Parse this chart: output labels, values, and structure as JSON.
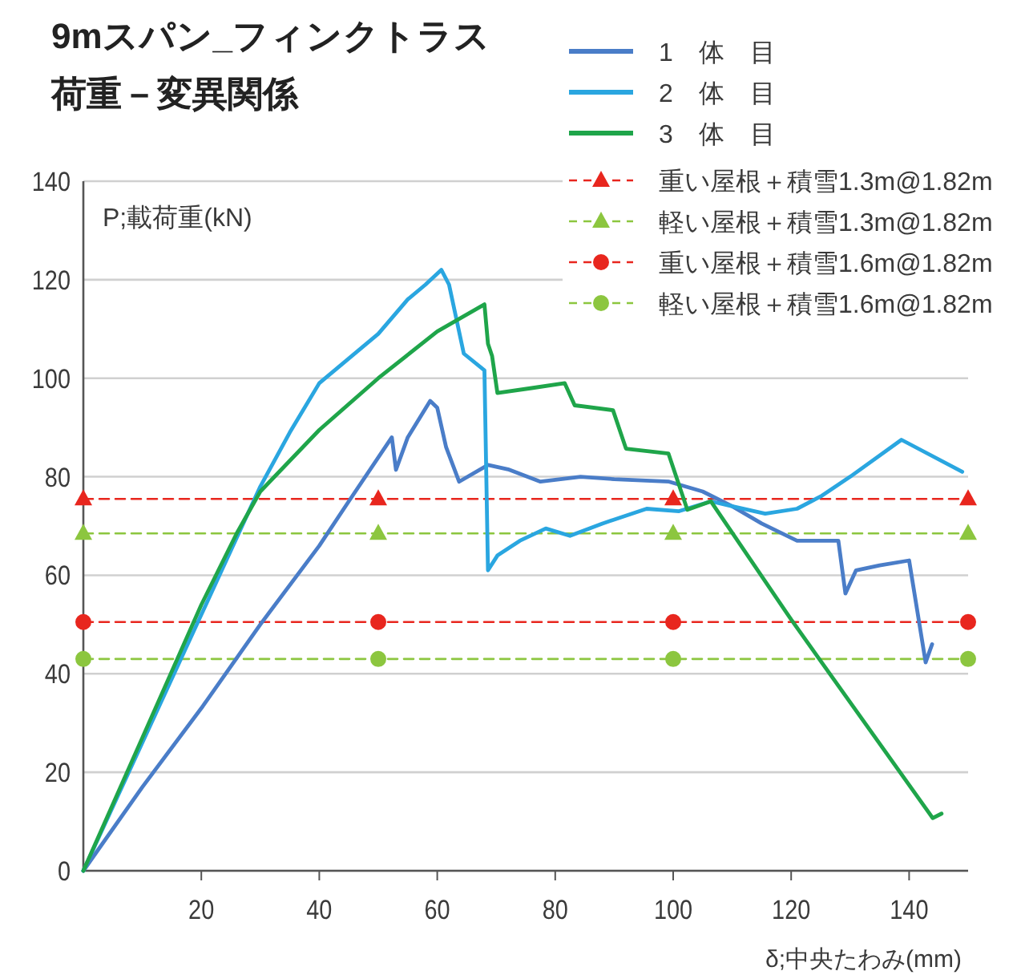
{
  "chart_data": {
    "type": "line",
    "title": "9mスパン_フィンクトラス",
    "subtitle": "荷重－変異関係",
    "ylabel": "P;載荷重(kN)",
    "xlabel": "δ;中央たわみ(mm)",
    "xlim": [
      0,
      150
    ],
    "ylim": [
      0,
      140
    ],
    "xticks": [
      20,
      40,
      60,
      80,
      100,
      120,
      140
    ],
    "yticks": [
      0,
      20,
      40,
      60,
      80,
      100,
      120,
      140
    ],
    "grid": "y",
    "legend": "top right",
    "marker": "none",
    "line_style": "solid",
    "series": [
      {
        "name": "1　体　目",
        "color": "#4a7dc8",
        "x": [
          0,
          10,
          20,
          30,
          40,
          45,
          52.3,
          53,
          55,
          58.8,
          60,
          61.5,
          63.7,
          68.6,
          72,
          77.5,
          84.3,
          90,
          99.3,
          105,
          110,
          115,
          121,
          128,
          129.2,
          131,
          135,
          140,
          142.8,
          143.9
        ],
        "values": [
          0,
          17,
          33,
          50,
          66,
          75,
          88,
          81.4,
          88,
          95.4,
          94,
          86,
          79,
          82.4,
          81.5,
          79,
          80,
          79.5,
          79,
          77,
          74,
          70.5,
          67,
          67,
          56.3,
          61,
          62,
          63,
          42.3,
          46
        ]
      },
      {
        "name": "2　体　目",
        "color": "#2aa6e0",
        "x": [
          0,
          10,
          20,
          30,
          35,
          40,
          45,
          50,
          55,
          58,
          60.7,
          62,
          64.5,
          68,
          68.6,
          70.2,
          74,
          78.4,
          82.5,
          88,
          95.5,
          101,
          106.4,
          110,
          115.6,
          121,
          125,
          130,
          138.7,
          149
        ],
        "values": [
          0,
          26,
          52,
          78,
          89,
          99,
          104,
          109,
          116,
          119,
          122,
          119,
          105,
          101.6,
          61,
          64,
          67,
          69.5,
          68,
          70.5,
          73.5,
          73,
          75,
          74,
          72.5,
          73.5,
          76,
          80,
          87.5,
          81
        ]
      },
      {
        "name": "3　体　目",
        "color": "#1fa54a",
        "x": [
          0,
          10,
          20,
          26,
          30,
          40,
          50,
          60,
          68,
          68.6,
          69.3,
          70.2,
          76,
          81.6,
          83.3,
          89.8,
          92,
          99.2,
          102.4,
          106.4,
          120,
          144,
          145.5
        ],
        "values": [
          0,
          27,
          54,
          68.5,
          77,
          89.5,
          100,
          109.5,
          115,
          107,
          104.5,
          97,
          98,
          99,
          94.5,
          93.5,
          85.7,
          84.7,
          73.3,
          75,
          51,
          10.7,
          11.6
        ]
      },
      {
        "name": "重い屋根＋積雪1.3m@1.82m",
        "color": "#e8261e",
        "x": [
          0,
          50,
          100,
          150
        ],
        "values": [
          75.5,
          75.5,
          75.5,
          75.5
        ],
        "line_style": "dashed",
        "marker": "triangle"
      },
      {
        "name": "軽い屋根＋積雪1.3m@1.82m",
        "color": "#8cc63f",
        "x": [
          0,
          50,
          100,
          150
        ],
        "values": [
          68.5,
          68.5,
          68.5,
          68.5
        ],
        "line_style": "dashed",
        "marker": "triangle"
      },
      {
        "name": "重い屋根＋積雪1.6m@1.82m",
        "color": "#e8261e",
        "x": [
          0,
          50,
          100,
          150
        ],
        "values": [
          50.5,
          50.5,
          50.5,
          50.5
        ],
        "line_style": "dashed",
        "marker": "circle"
      },
      {
        "name": "軽い屋根＋積雪1.6m@1.82m",
        "color": "#8cc63f",
        "x": [
          0,
          50,
          100,
          150
        ],
        "values": [
          43,
          43,
          43,
          43
        ],
        "line_style": "dashed",
        "marker": "circle"
      }
    ]
  }
}
